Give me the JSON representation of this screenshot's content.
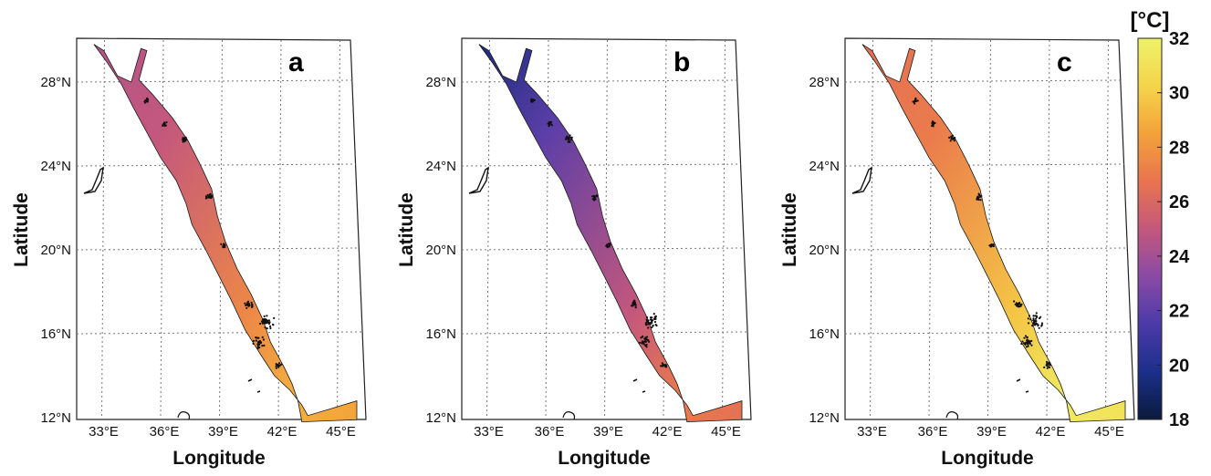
{
  "panels": [
    {
      "label": "a",
      "sst_range_c": [
        25,
        29
      ],
      "north_gulf_c": 24.5,
      "south_c": 28.5
    },
    {
      "label": "b",
      "sst_range_c": [
        22,
        27
      ],
      "north_gulf_c": 19.5,
      "south_c": 26.5
    },
    {
      "label": "c",
      "sst_range_c": [
        27,
        31.5
      ],
      "north_gulf_c": 26.5,
      "south_c": 31.0
    }
  ],
  "axes": {
    "xlabel": "Longitude",
    "ylabel": "Latitude",
    "x_ticks": [
      "33°E",
      "36°E",
      "39°E",
      "42°E",
      "45°E"
    ],
    "y_ticks": [
      "28°N",
      "24°N",
      "20°N",
      "16°N",
      "12°N"
    ],
    "lon_range": [
      32,
      46
    ],
    "lat_range": [
      12,
      30
    ],
    "grid": true
  },
  "colorbar": {
    "unit_label": "[°C]",
    "ticks": [
      "32",
      "30",
      "28",
      "26",
      "24",
      "22",
      "20",
      "18"
    ],
    "range": [
      18,
      32
    ],
    "colormap": "thermal",
    "colors": [
      "#0b1a3c",
      "#1b2f8a",
      "#4b3aa8",
      "#8a4aa6",
      "#c4587c",
      "#e9744f",
      "#f3a23a",
      "#f5d44a",
      "#eef36a"
    ]
  }
}
